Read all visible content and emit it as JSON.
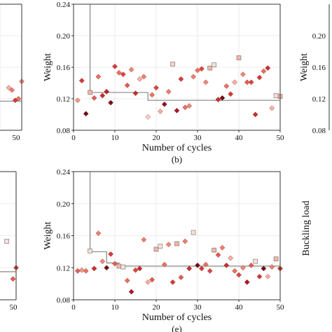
{
  "chart_data": [
    {
      "id": "b",
      "type": "scatter",
      "panel_label": "(b)",
      "xlabel": "Number of cycles",
      "ylabel": "Weight",
      "xlim": [
        0,
        50
      ],
      "ylim": [
        0.08,
        0.24
      ],
      "xticks": [
        "0",
        "10",
        "20",
        "30",
        "40",
        "50"
      ],
      "yticks": [
        "0.08",
        "0.12",
        "0.16",
        "0.20",
        "0.24"
      ],
      "grid": true,
      "step": [
        [
          4,
          0.24
        ],
        [
          4,
          0.128
        ],
        [
          18,
          0.128
        ],
        [
          18,
          0.118
        ],
        [
          50,
          0.118
        ]
      ],
      "points": [
        {
          "x": 1,
          "y": 0.118,
          "marker": "diamond",
          "color": "#ef9a8a"
        },
        {
          "x": 2,
          "y": 0.143,
          "marker": "diamond",
          "color": "#d43a3a"
        },
        {
          "x": 3,
          "y": 0.101,
          "marker": "diamond",
          "color": "#6b0f1a"
        },
        {
          "x": 4,
          "y": 0.128,
          "marker": "square",
          "color": "#f4b5a8"
        },
        {
          "x": 5,
          "y": 0.121,
          "marker": "diamond",
          "color": "#e15d55"
        },
        {
          "x": 6,
          "y": 0.148,
          "marker": "diamond",
          "color": "#e8735f"
        },
        {
          "x": 7,
          "y": 0.124,
          "marker": "diamond",
          "color": "#c62e2e"
        },
        {
          "x": 8,
          "y": 0.129,
          "marker": "diamond",
          "color": "#b82028"
        },
        {
          "x": 9,
          "y": 0.115,
          "marker": "diamond",
          "color": "#7a0e18"
        },
        {
          "x": 10,
          "y": 0.161,
          "marker": "diamond",
          "color": "#d43a3a"
        },
        {
          "x": 11,
          "y": 0.153,
          "marker": "diamond",
          "color": "#e8735f"
        },
        {
          "x": 12,
          "y": 0.151,
          "marker": "diamond",
          "color": "#d9483f"
        },
        {
          "x": 13,
          "y": 0.137,
          "marker": "diamond",
          "color": "#e15d55"
        },
        {
          "x": 14,
          "y": 0.157,
          "marker": "diamond",
          "color": "#f08a78"
        },
        {
          "x": 15,
          "y": 0.127,
          "marker": "diamond",
          "color": "#c62e2e"
        },
        {
          "x": 16,
          "y": 0.145,
          "marker": "diamond",
          "color": "#f4b5a8"
        },
        {
          "x": 17,
          "y": 0.148,
          "marker": "diamond",
          "color": "#ec8170"
        },
        {
          "x": 18,
          "y": 0.097,
          "marker": "diamond",
          "color": "#f7d2c8"
        },
        {
          "x": 19,
          "y": 0.125,
          "marker": "diamond",
          "color": "#e8735f"
        },
        {
          "x": 20,
          "y": 0.134,
          "marker": "diamond",
          "color": "#d9483f"
        },
        {
          "x": 21,
          "y": 0.104,
          "marker": "diamond",
          "color": "#f3b3a5"
        },
        {
          "x": 22,
          "y": 0.113,
          "marker": "diamond",
          "color": "#8b1220"
        },
        {
          "x": 23,
          "y": 0.129,
          "marker": "diamond",
          "color": "#ec8170"
        },
        {
          "x": 24,
          "y": 0.164,
          "marker": "square",
          "color": "#f7d2c8"
        },
        {
          "x": 25,
          "y": 0.105,
          "marker": "diamond",
          "color": "#a8182a"
        },
        {
          "x": 26,
          "y": 0.145,
          "marker": "diamond",
          "color": "#d43a3a"
        },
        {
          "x": 27,
          "y": 0.109,
          "marker": "diamond",
          "color": "#e8735f"
        },
        {
          "x": 28,
          "y": 0.111,
          "marker": "diamond",
          "color": "#f08a78"
        },
        {
          "x": 29,
          "y": 0.148,
          "marker": "diamond",
          "color": "#ec8170"
        },
        {
          "x": 30,
          "y": 0.156,
          "marker": "diamond",
          "color": "#e8735f"
        },
        {
          "x": 31,
          "y": 0.158,
          "marker": "diamond",
          "color": "#d9483f"
        },
        {
          "x": 32,
          "y": 0.141,
          "marker": "diamond",
          "color": "#f08a78"
        },
        {
          "x": 33,
          "y": 0.159,
          "marker": "square",
          "color": "#f4b5a8"
        },
        {
          "x": 34,
          "y": 0.163,
          "marker": "square",
          "color": "#f9e0d8"
        },
        {
          "x": 35,
          "y": 0.119,
          "marker": "diamond",
          "color": "#c62e2e"
        },
        {
          "x": 36,
          "y": 0.121,
          "marker": "diamond",
          "color": "#6b0f1a"
        },
        {
          "x": 37,
          "y": 0.136,
          "marker": "diamond",
          "color": "#e8735f"
        },
        {
          "x": 38,
          "y": 0.126,
          "marker": "diamond",
          "color": "#d43a3a"
        },
        {
          "x": 39,
          "y": 0.141,
          "marker": "diamond",
          "color": "#f3b3a5"
        },
        {
          "x": 40,
          "y": 0.172,
          "marker": "square",
          "color": "#f4b5a8"
        },
        {
          "x": 41,
          "y": 0.151,
          "marker": "diamond",
          "color": "#f08a78"
        },
        {
          "x": 42,
          "y": 0.141,
          "marker": "diamond",
          "color": "#e15d55"
        },
        {
          "x": 43,
          "y": 0.141,
          "marker": "diamond",
          "color": "#d9483f"
        },
        {
          "x": 44,
          "y": 0.1,
          "marker": "diamond",
          "color": "#c62e2e"
        },
        {
          "x": 45,
          "y": 0.147,
          "marker": "diamond",
          "color": "#d43a3a"
        },
        {
          "x": 46,
          "y": 0.155,
          "marker": "diamond",
          "color": "#e8735f"
        },
        {
          "x": 47,
          "y": 0.159,
          "marker": "diamond",
          "color": "#c62e2e"
        },
        {
          "x": 48,
          "y": 0.108,
          "marker": "diamond",
          "color": "#f3b3a5"
        },
        {
          "x": 49,
          "y": 0.124,
          "marker": "square",
          "color": "#f9e0d8"
        },
        {
          "x": 50,
          "y": 0.123,
          "marker": "square",
          "color": "#f4b5a8"
        }
      ]
    },
    {
      "id": "e",
      "type": "scatter",
      "panel_label": "(e)",
      "xlabel": "Number of cycles",
      "ylabel": "Weight",
      "xlim": [
        0,
        50
      ],
      "ylim": [
        0.08,
        0.24
      ],
      "xticks": [
        "0",
        "10",
        "20",
        "30",
        "40",
        "50"
      ],
      "yticks": [
        "0.08",
        "0.12",
        "0.16",
        "0.20",
        "0.24"
      ],
      "grid": true,
      "step": [
        [
          4,
          0.24
        ],
        [
          4,
          0.14
        ],
        [
          8,
          0.14
        ],
        [
          8,
          0.126
        ],
        [
          11,
          0.126
        ],
        [
          11,
          0.122
        ],
        [
          50,
          0.122
        ]
      ],
      "points": [
        {
          "x": 1,
          "y": 0.116,
          "marker": "diamond",
          "color": "#e15d55"
        },
        {
          "x": 2,
          "y": 0.117,
          "marker": "diamond",
          "color": "#ef9a8a"
        },
        {
          "x": 3,
          "y": 0.116,
          "marker": "diamond",
          "color": "#e8735f"
        },
        {
          "x": 4,
          "y": 0.141,
          "marker": "square",
          "color": "#f9e0d8"
        },
        {
          "x": 5,
          "y": 0.119,
          "marker": "diamond",
          "color": "#c62e2e"
        },
        {
          "x": 6,
          "y": 0.163,
          "marker": "diamond",
          "color": "#ec8170"
        },
        {
          "x": 7,
          "y": 0.128,
          "marker": "diamond",
          "color": "#f08a78"
        },
        {
          "x": 8,
          "y": 0.12,
          "marker": "diamond",
          "color": "#6b0f1a"
        },
        {
          "x": 9,
          "y": 0.137,
          "marker": "diamond",
          "color": "#d43a3a"
        },
        {
          "x": 10,
          "y": 0.125,
          "marker": "diamond",
          "color": "#e15d55"
        },
        {
          "x": 11,
          "y": 0.122,
          "marker": "square",
          "color": "#f4b5a8"
        },
        {
          "x": 12,
          "y": 0.121,
          "marker": "square",
          "color": "#f9e0d8"
        },
        {
          "x": 13,
          "y": 0.104,
          "marker": "diamond",
          "color": "#e8735f"
        },
        {
          "x": 14,
          "y": 0.09,
          "marker": "diamond",
          "color": "#a8182a"
        },
        {
          "x": 15,
          "y": 0.117,
          "marker": "diamond",
          "color": "#d9483f"
        },
        {
          "x": 16,
          "y": 0.119,
          "marker": "diamond",
          "color": "#c62e2e"
        },
        {
          "x": 17,
          "y": 0.155,
          "marker": "diamond",
          "color": "#ec8170"
        },
        {
          "x": 18,
          "y": 0.102,
          "marker": "diamond",
          "color": "#f3b3a5"
        },
        {
          "x": 19,
          "y": 0.105,
          "marker": "diamond",
          "color": "#e15d55"
        },
        {
          "x": 20,
          "y": 0.143,
          "marker": "square",
          "color": "#f4b5a8"
        },
        {
          "x": 21,
          "y": 0.147,
          "marker": "square",
          "color": "#f9e0d8"
        },
        {
          "x": 22,
          "y": 0.124,
          "marker": "diamond",
          "color": "#e8735f"
        },
        {
          "x": 23,
          "y": 0.149,
          "marker": "diamond",
          "color": "#f08a78"
        },
        {
          "x": 24,
          "y": 0.102,
          "marker": "diamond",
          "color": "#d43a3a"
        },
        {
          "x": 25,
          "y": 0.15,
          "marker": "square",
          "color": "#f4b5a8"
        },
        {
          "x": 26,
          "y": 0.108,
          "marker": "diamond",
          "color": "#e15d55"
        },
        {
          "x": 27,
          "y": 0.153,
          "marker": "diamond",
          "color": "#ec8170"
        },
        {
          "x": 28,
          "y": 0.119,
          "marker": "diamond",
          "color": "#c62e2e"
        },
        {
          "x": 29,
          "y": 0.164,
          "marker": "square",
          "color": "#f9e0d8"
        },
        {
          "x": 30,
          "y": 0.123,
          "marker": "diamond",
          "color": "#6b0f1a"
        },
        {
          "x": 31,
          "y": 0.119,
          "marker": "diamond",
          "color": "#d43a3a"
        },
        {
          "x": 32,
          "y": 0.124,
          "marker": "diamond",
          "color": "#e8735f"
        },
        {
          "x": 33,
          "y": 0.116,
          "marker": "diamond",
          "color": "#d9483f"
        },
        {
          "x": 34,
          "y": 0.142,
          "marker": "square",
          "color": "#f4b5a8"
        },
        {
          "x": 35,
          "y": 0.136,
          "marker": "diamond",
          "color": "#e15d55"
        },
        {
          "x": 36,
          "y": 0.145,
          "marker": "diamond",
          "color": "#ec8170"
        },
        {
          "x": 37,
          "y": 0.123,
          "marker": "diamond",
          "color": "#c62e2e"
        },
        {
          "x": 38,
          "y": 0.132,
          "marker": "diamond",
          "color": "#f3b3a5"
        },
        {
          "x": 39,
          "y": 0.116,
          "marker": "diamond",
          "color": "#e8735f"
        },
        {
          "x": 40,
          "y": 0.111,
          "marker": "diamond",
          "color": "#d9483f"
        },
        {
          "x": 41,
          "y": 0.12,
          "marker": "diamond",
          "color": "#f08a78"
        },
        {
          "x": 42,
          "y": 0.102,
          "marker": "diamond",
          "color": "#a8182a"
        },
        {
          "x": 43,
          "y": 0.123,
          "marker": "diamond",
          "color": "#e15d55"
        },
        {
          "x": 44,
          "y": 0.128,
          "marker": "square",
          "color": "#f9e0d8"
        },
        {
          "x": 45,
          "y": 0.109,
          "marker": "diamond",
          "color": "#d43a3a"
        },
        {
          "x": 46,
          "y": 0.119,
          "marker": "diamond",
          "color": "#6b0f1a"
        },
        {
          "x": 47,
          "y": 0.109,
          "marker": "diamond",
          "color": "#f3b3a5"
        },
        {
          "x": 48,
          "y": 0.121,
          "marker": "diamond",
          "color": "#ec8170"
        },
        {
          "x": 49,
          "y": 0.131,
          "marker": "square",
          "color": "#f4b5a8"
        },
        {
          "x": 50,
          "y": 0.119,
          "marker": "diamond",
          "color": "#c62e2e"
        }
      ]
    },
    {
      "id": "a-partial",
      "type": "scatter",
      "xticks": [
        "50"
      ],
      "xlim": [
        0,
        50
      ],
      "ylim": [
        0.08,
        0.24
      ],
      "step": [
        [
          30,
          0.117
        ],
        [
          50,
          0.117
        ]
      ],
      "points": [
        {
          "x": 46,
          "y": 0.134,
          "marker": "diamond",
          "color": "#f3b3a5"
        },
        {
          "x": 47,
          "y": 0.131,
          "marker": "diamond",
          "color": "#ec8170"
        },
        {
          "x": 48,
          "y": 0.118,
          "marker": "diamond",
          "color": "#d43a3a"
        },
        {
          "x": 49,
          "y": 0.12,
          "marker": "diamond",
          "color": "#e8735f"
        },
        {
          "x": 50,
          "y": 0.142,
          "marker": "diamond",
          "color": "#f08a78"
        }
      ]
    },
    {
      "id": "d-partial",
      "type": "scatter",
      "xticks": [
        "50"
      ],
      "xlim": [
        0,
        50
      ],
      "ylim": [
        0.08,
        0.24
      ],
      "step": [
        [
          30,
          0.115
        ],
        [
          50,
          0.115
        ]
      ],
      "points": [
        {
          "x": 47,
          "y": 0.153,
          "marker": "square",
          "color": "#f9e0d8"
        },
        {
          "x": 49,
          "y": 0.106,
          "marker": "diamond",
          "color": "#e15d55"
        },
        {
          "x": 50,
          "y": 0.12,
          "marker": "diamond",
          "color": "#d43a3a"
        }
      ]
    },
    {
      "id": "c-partial",
      "type": "scatter",
      "ylabel": "Weight",
      "yticks": [
        "0.08",
        "0.12",
        "0.16",
        "0.20"
      ],
      "ylim": [
        0.08,
        0.24
      ]
    },
    {
      "id": "f-partial",
      "type": "scatter",
      "ylabel": "Buckling load"
    }
  ]
}
